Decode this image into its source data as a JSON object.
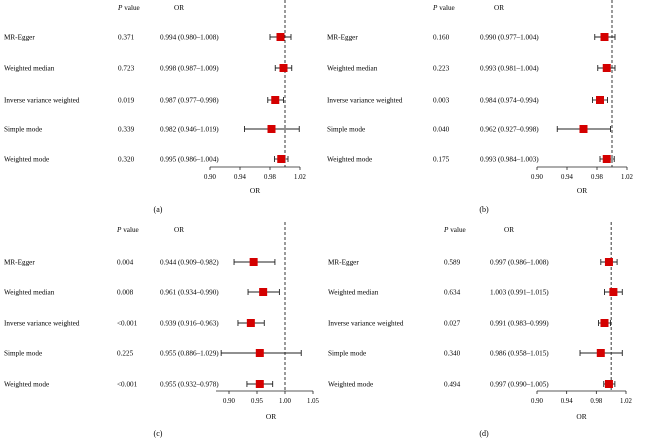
{
  "headers": {
    "p": "P value",
    "p_italic": "P",
    "p_rest": "value",
    "or": "OR"
  },
  "chart_data": [
    {
      "type": "forest",
      "panel_label": "(a)",
      "xlabel": "OR",
      "ticks": [
        "0.90",
        "0.94",
        "0.98",
        "1.02"
      ],
      "tick_values": [
        0.9,
        0.94,
        0.98,
        1.02
      ],
      "xlim": [
        0.9,
        1.04
      ],
      "reference": 1.0,
      "rows": [
        {
          "method": "MR-Egger",
          "p": "0.371",
          "or_text": "0.994 (0.980–1.008)",
          "or": 0.994,
          "lo": 0.98,
          "hi": 1.008
        },
        {
          "method": "Weighted median",
          "p": "0.723",
          "or_text": "0.998 (0.987–1.009)",
          "or": 0.998,
          "lo": 0.987,
          "hi": 1.009
        },
        {
          "method": "Inverse variance weighted",
          "p": "0.019",
          "or_text": "0.987 (0.977–0.998)",
          "or": 0.987,
          "lo": 0.977,
          "hi": 0.998
        },
        {
          "method": "Simple mode",
          "p": "0.339",
          "or_text": "0.982 (0.946–1.019)",
          "or": 0.982,
          "lo": 0.946,
          "hi": 1.019
        },
        {
          "method": "Weighted mode",
          "p": "0.320",
          "or_text": "0.995 (0.986–1.004)",
          "or": 0.995,
          "lo": 0.986,
          "hi": 1.004
        }
      ]
    },
    {
      "type": "forest",
      "panel_label": "(b)",
      "xlabel": "OR",
      "ticks": [
        "0.90",
        "0.94",
        "0.98",
        "1.02"
      ],
      "tick_values": [
        0.9,
        0.94,
        0.98,
        1.02
      ],
      "xlim": [
        0.9,
        1.04
      ],
      "reference": 1.0,
      "rows": [
        {
          "method": "MR-Egger",
          "p": "0.160",
          "or_text": "0.990 (0.977–1.004)",
          "or": 0.99,
          "lo": 0.977,
          "hi": 1.004
        },
        {
          "method": "Weighted median",
          "p": "0.223",
          "or_text": "0.993 (0.981–1.004)",
          "or": 0.993,
          "lo": 0.981,
          "hi": 1.004
        },
        {
          "method": "Inverse variance weighted",
          "p": "0.003",
          "or_text": "0.984 (0.974–0.994)",
          "or": 0.984,
          "lo": 0.974,
          "hi": 0.994
        },
        {
          "method": "Simple mode",
          "p": "0.040",
          "or_text": "0.962 (0.927–0.998)",
          "or": 0.962,
          "lo": 0.927,
          "hi": 0.998
        },
        {
          "method": "Weighted mode",
          "p": "0.175",
          "or_text": "0.993 (0.984–1.003)",
          "or": 0.993,
          "lo": 0.984,
          "hi": 1.003
        }
      ]
    },
    {
      "type": "forest",
      "panel_label": "(c)",
      "xlabel": "OR",
      "ticks": [
        "0.90",
        "0.95",
        "1.00",
        "1.05"
      ],
      "tick_values": [
        0.9,
        0.95,
        1.0,
        1.05
      ],
      "xlim": [
        0.875,
        1.05
      ],
      "reference": 1.0,
      "rows": [
        {
          "method": "MR-Egger",
          "p": "0.004",
          "or_text": "0.944 (0.909–0.982)",
          "or": 0.944,
          "lo": 0.909,
          "hi": 0.982
        },
        {
          "method": "Weighted median",
          "p": "0.008",
          "or_text": "0.961 (0.934–0.990)",
          "or": 0.961,
          "lo": 0.934,
          "hi": 0.99
        },
        {
          "method": "Inverse variance weighted",
          "p": "<0.001",
          "or_text": "0.939 (0.916–0.963)",
          "or": 0.939,
          "lo": 0.916,
          "hi": 0.963
        },
        {
          "method": "Simple mode",
          "p": "0.225",
          "or_text": "0.955 (0.886–1.029)",
          "or": 0.955,
          "lo": 0.886,
          "hi": 1.029
        },
        {
          "method": "Weighted mode",
          "p": "<0.001",
          "or_text": "0.955 (0.932–0.978)",
          "or": 0.955,
          "lo": 0.932,
          "hi": 0.978
        }
      ]
    },
    {
      "type": "forest",
      "panel_label": "(d)",
      "xlabel": "OR",
      "ticks": [
        "0.90",
        "0.94",
        "0.98",
        "1.02"
      ],
      "tick_values": [
        0.9,
        0.94,
        0.98,
        1.02
      ],
      "xlim": [
        0.9,
        1.04
      ],
      "reference": 1.0,
      "rows": [
        {
          "method": "MR-Egger",
          "p": "0.589",
          "or_text": "0.997 (0.986–1.008)",
          "or": 0.997,
          "lo": 0.986,
          "hi": 1.008
        },
        {
          "method": "Weighted median",
          "p": "0.634",
          "or_text": "1.003 (0.991–1.015)",
          "or": 1.003,
          "lo": 0.991,
          "hi": 1.015
        },
        {
          "method": "Inverse variance weighted",
          "p": "0.027",
          "or_text": "0.991 (0.983–0.999)",
          "or": 0.991,
          "lo": 0.983,
          "hi": 0.999
        },
        {
          "method": "Simple mode",
          "p": "0.340",
          "or_text": "0.986 (0.958–1.015)",
          "or": 0.986,
          "lo": 0.958,
          "hi": 1.015
        },
        {
          "method": "Weighted mode",
          "p": "0.494",
          "or_text": "0.997 (0.990–1.005)",
          "or": 0.997,
          "lo": 0.99,
          "hi": 1.005
        }
      ]
    }
  ],
  "colors": {
    "marker": "#d40000",
    "line": "#222222",
    "text": "#000000"
  }
}
